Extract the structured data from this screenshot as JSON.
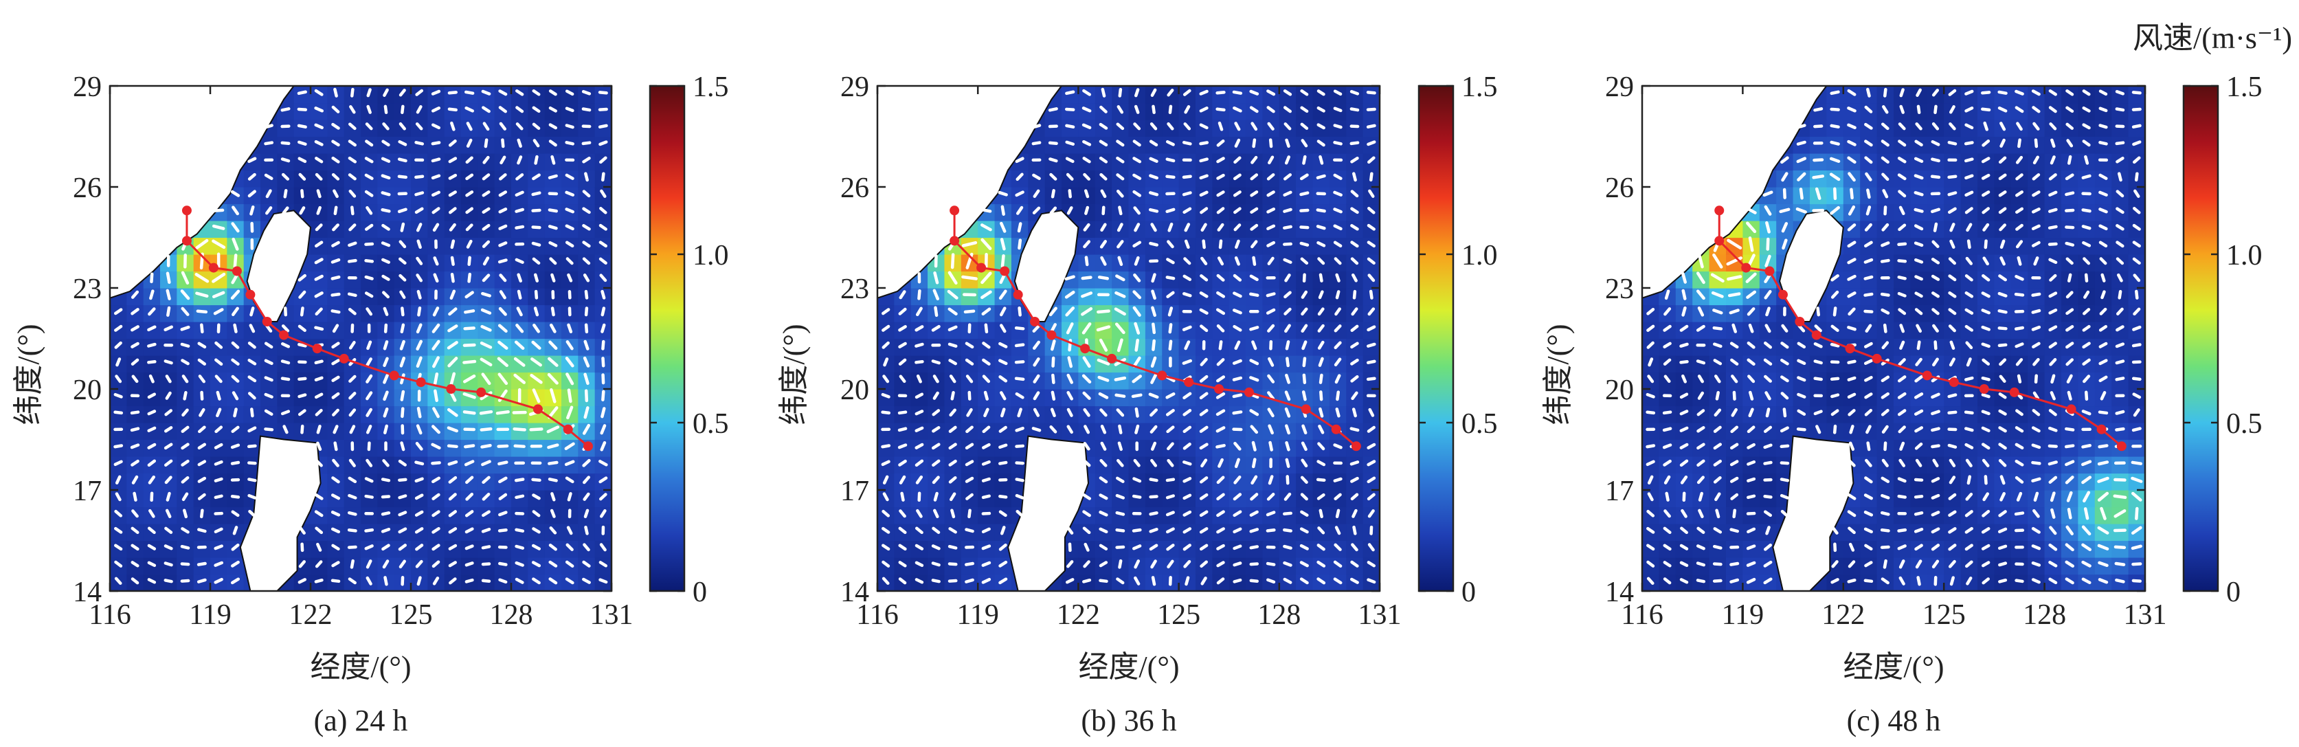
{
  "colorbar": {
    "title": "风速/(m·s⁻¹)",
    "range": [
      0,
      1.5
    ],
    "ticks": [
      0,
      0.5,
      1.0,
      1.5
    ],
    "tick_labels": [
      "0",
      "0.5",
      "1.0",
      "1.5"
    ],
    "colormap": [
      "#0a1a72",
      "#1f3fb5",
      "#2f78d6",
      "#3fc0ea",
      "#6ee07a",
      "#d9ef2e",
      "#f7a21d",
      "#ef3a1e",
      "#a8121c",
      "#5a0d10"
    ]
  },
  "chart_data": [
    {
      "type": "vector-field",
      "panel": "(a) 24 h",
      "xlabel": "经度/(°)",
      "ylabel": "纬度/(°)",
      "xlim": [
        116,
        131
      ],
      "ylim": [
        14,
        29
      ],
      "xticks": [
        116,
        119,
        122,
        125,
        128,
        131
      ],
      "yticks": [
        14,
        17,
        20,
        23,
        26,
        29
      ],
      "track_color": "#e8262a",
      "track": [
        [
          130.3,
          18.3
        ],
        [
          129.7,
          18.8
        ],
        [
          128.8,
          19.4
        ],
        [
          127.1,
          19.9
        ],
        [
          126.2,
          20.0
        ],
        [
          125.3,
          20.2
        ],
        [
          124.5,
          20.4
        ],
        [
          123.0,
          20.9
        ],
        [
          122.2,
          21.2
        ],
        [
          121.2,
          21.6
        ],
        [
          120.7,
          22.0
        ],
        [
          120.2,
          22.8
        ],
        [
          119.8,
          23.5
        ],
        [
          119.1,
          23.6
        ],
        [
          118.3,
          24.4
        ],
        [
          118.3,
          25.3
        ]
      ],
      "eddies": [
        {
          "lon": 126.7,
          "lat": 20.3,
          "strength": 0.55,
          "radius": 1.8
        },
        {
          "lon": 129.2,
          "lat": 19.6,
          "strength": 0.6,
          "radius": 1.6
        },
        {
          "lon": 119.0,
          "lat": 23.7,
          "strength": 0.95,
          "radius": 1.2
        }
      ]
    },
    {
      "type": "vector-field",
      "panel": "(b) 36 h",
      "xlabel": "经度/(°)",
      "ylabel": "纬度/(°)",
      "xlim": [
        116,
        131
      ],
      "ylim": [
        14,
        29
      ],
      "xticks": [
        116,
        119,
        122,
        125,
        128,
        131
      ],
      "yticks": [
        14,
        17,
        20,
        23,
        26,
        29
      ],
      "track_color": "#e8262a",
      "track": [
        [
          130.3,
          18.3
        ],
        [
          129.7,
          18.8
        ],
        [
          128.8,
          19.4
        ],
        [
          127.1,
          19.9
        ],
        [
          126.2,
          20.0
        ],
        [
          125.3,
          20.2
        ],
        [
          124.5,
          20.4
        ],
        [
          123.0,
          20.9
        ],
        [
          122.2,
          21.2
        ],
        [
          121.2,
          21.6
        ],
        [
          120.7,
          22.0
        ],
        [
          120.2,
          22.8
        ],
        [
          119.8,
          23.5
        ],
        [
          119.1,
          23.6
        ],
        [
          118.3,
          24.4
        ],
        [
          118.3,
          25.3
        ]
      ],
      "eddies": [
        {
          "lon": 122.8,
          "lat": 21.5,
          "strength": 0.6,
          "radius": 1.6
        },
        {
          "lon": 118.8,
          "lat": 23.7,
          "strength": 0.95,
          "radius": 1.2
        },
        {
          "lon": 127.5,
          "lat": 19.5,
          "strength": 0.15,
          "radius": 2.0
        }
      ]
    },
    {
      "type": "vector-field",
      "panel": "(c) 48 h",
      "xlabel": "经度/(°)",
      "ylabel": "纬度/(°)",
      "xlim": [
        116,
        131
      ],
      "ylim": [
        14,
        29
      ],
      "xticks": [
        116,
        119,
        122,
        125,
        128,
        131
      ],
      "yticks": [
        14,
        17,
        20,
        23,
        26,
        29
      ],
      "track_color": "#e8262a",
      "track": [
        [
          130.3,
          18.3
        ],
        [
          129.7,
          18.8
        ],
        [
          128.8,
          19.4
        ],
        [
          127.1,
          19.9
        ],
        [
          126.2,
          20.0
        ],
        [
          125.3,
          20.2
        ],
        [
          124.5,
          20.4
        ],
        [
          123.0,
          20.9
        ],
        [
          122.2,
          21.2
        ],
        [
          121.2,
          21.6
        ],
        [
          120.7,
          22.0
        ],
        [
          120.2,
          22.8
        ],
        [
          119.8,
          23.5
        ],
        [
          119.1,
          23.6
        ],
        [
          118.3,
          24.4
        ],
        [
          118.3,
          25.3
        ]
      ],
      "eddies": [
        {
          "lon": 130.0,
          "lat": 16.5,
          "strength": 0.55,
          "radius": 1.5
        },
        {
          "lon": 118.6,
          "lat": 24.0,
          "strength": 1.0,
          "radius": 1.3
        },
        {
          "lon": 121.5,
          "lat": 25.8,
          "strength": 0.45,
          "radius": 1.1
        }
      ]
    }
  ]
}
